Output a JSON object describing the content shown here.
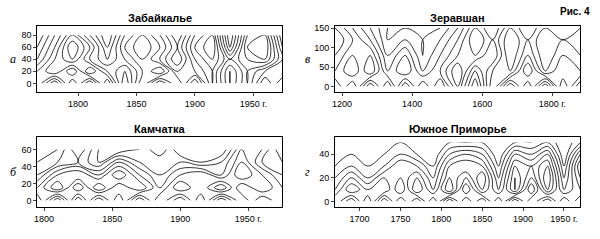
{
  "figure_label": "Рис. 4",
  "chart_data": [
    {
      "type": "contour",
      "title": "Забайкалье",
      "panel": "а",
      "grid": false,
      "x": [
        1765,
        1780,
        1795,
        1810,
        1825,
        1840,
        1855,
        1870,
        1885,
        1900,
        1915,
        1930,
        1945,
        1960,
        1975
      ],
      "y": [
        0,
        20,
        40,
        60,
        80
      ],
      "z": [
        [
          0.6,
          0.2,
          0.7,
          0.3,
          0.8,
          0.2,
          0.7,
          0.3,
          0.6,
          0.2,
          0.7,
          0.3,
          0.6,
          0.2,
          0.5
        ],
        [
          0.5,
          0.7,
          0.4,
          0.8,
          0.5,
          0.3,
          0.6,
          0.8,
          0.4,
          0.5,
          0.7,
          0.3,
          0.6,
          0.4,
          0.3
        ],
        [
          0.3,
          0.6,
          0.8,
          0.5,
          0.3,
          0.5,
          0.7,
          0.5,
          0.2,
          0.6,
          0.8,
          0.5,
          0.7,
          0.8,
          0.4
        ],
        [
          0.2,
          0.5,
          0.9,
          0.6,
          0.2,
          0.6,
          0.8,
          0.6,
          0.3,
          0.7,
          0.9,
          0.2,
          0.8,
          0.9,
          0.3
        ],
        [
          0.1,
          0.4,
          0.7,
          0.4,
          0.1,
          0.5,
          0.7,
          0.5,
          0.2,
          0.6,
          0.8,
          0.1,
          0.7,
          0.8,
          0.2
        ]
      ],
      "levels": [
        0.2,
        0.3,
        0.4,
        0.5,
        0.6,
        0.7,
        0.8
      ],
      "xlim": [
        1765,
        1975
      ],
      "ylim": [
        -15,
        95
      ],
      "xticks": [
        1800,
        1850,
        1900,
        {
          "value": 1950,
          "label": "1950 г."
        }
      ],
      "yticks": [
        0,
        20,
        40,
        60,
        80
      ]
    },
    {
      "type": "contour",
      "title": "Камчатка",
      "panel": "б",
      "grid": false,
      "x": [
        1795,
        1810,
        1825,
        1840,
        1855,
        1870,
        1885,
        1900,
        1915,
        1930,
        1945,
        1960,
        1975
      ],
      "y": [
        0,
        15,
        30,
        45,
        60
      ],
      "z": [
        [
          0.7,
          0.2,
          0.8,
          0.3,
          0.7,
          0.2,
          0.6,
          0.3,
          0.7,
          0.2,
          0.6,
          0.3,
          0.5
        ],
        [
          0.5,
          0.8,
          0.4,
          0.8,
          0.5,
          0.7,
          0.4,
          0.7,
          0.5,
          0.8,
          0.4,
          0.6,
          0.4
        ],
        [
          0.3,
          0.6,
          0.7,
          0.5,
          0.8,
          0.5,
          0.3,
          0.5,
          0.6,
          0.4,
          0.7,
          0.5,
          0.3
        ],
        [
          0.2,
          0.3,
          0.4,
          0.2,
          0.5,
          0.3,
          0.2,
          0.3,
          0.2,
          0.3,
          0.6,
          0.3,
          0.2
        ],
        [
          0.1,
          0.2,
          0.5,
          0.2,
          0.1,
          0.2,
          0.4,
          0.1,
          0.2,
          0.1,
          0.5,
          0.4,
          0.1
        ]
      ],
      "levels": [
        0.2,
        0.3,
        0.4,
        0.5,
        0.6,
        0.7,
        0.8
      ],
      "xlim": [
        1795,
        1975
      ],
      "ylim": [
        -8,
        75
      ],
      "xticks": [
        1800,
        1850,
        1900,
        {
          "value": 1950,
          "label": "1950 г."
        }
      ],
      "yticks": [
        0,
        20,
        40,
        60
      ]
    },
    {
      "type": "contour",
      "title": "Зеравшан",
      "panel": "в",
      "grid": false,
      "x": [
        1180,
        1230,
        1280,
        1330,
        1380,
        1430,
        1480,
        1530,
        1580,
        1630,
        1680,
        1730,
        1780,
        1830,
        1880
      ],
      "y": [
        0,
        40,
        80,
        120,
        150
      ],
      "z": [
        [
          0.5,
          0.8,
          0.3,
          0.7,
          0.2,
          0.6,
          0.3,
          0.7,
          0.2,
          0.8,
          0.3,
          0.7,
          0.2,
          0.8,
          0.4
        ],
        [
          0.7,
          0.5,
          0.8,
          0.4,
          0.6,
          0.3,
          0.5,
          0.8,
          0.4,
          0.7,
          0.8,
          0.4,
          0.8,
          0.6,
          0.7
        ],
        [
          0.8,
          0.6,
          0.7,
          0.3,
          0.5,
          0.2,
          0.4,
          0.6,
          0.7,
          0.5,
          0.9,
          0.6,
          0.9,
          0.7,
          0.8
        ],
        [
          0.9,
          0.7,
          0.5,
          0.2,
          0.3,
          0.2,
          0.3,
          0.5,
          0.8,
          0.6,
          0.9,
          0.7,
          0.9,
          0.8,
          0.9
        ],
        [
          0.8,
          0.6,
          0.4,
          0.2,
          0.2,
          0.1,
          0.2,
          0.4,
          0.7,
          0.5,
          0.8,
          0.6,
          0.8,
          0.7,
          0.8
        ]
      ],
      "levels": [
        0.2,
        0.3,
        0.4,
        0.5,
        0.6,
        0.7,
        0.8
      ],
      "xlim": [
        1180,
        1880
      ],
      "ylim": [
        -15,
        155
      ],
      "xticks": [
        1200,
        1400,
        1600,
        {
          "value": 1800,
          "label": "1800 г."
        }
      ],
      "yticks": [
        0,
        50,
        100,
        150
      ]
    },
    {
      "type": "contour",
      "title": "Южное Приморье",
      "panel": "г",
      "grid": false,
      "x": [
        1670,
        1690,
        1710,
        1730,
        1750,
        1770,
        1790,
        1810,
        1830,
        1850,
        1870,
        1890,
        1910,
        1930,
        1950,
        1970
      ],
      "y": [
        0,
        10,
        20,
        30,
        40,
        50
      ],
      "z": [
        [
          0.6,
          0.3,
          0.7,
          0.2,
          0.6,
          0.3,
          0.7,
          0.2,
          0.6,
          0.3,
          0.7,
          0.2,
          0.6,
          0.3,
          0.7,
          0.4
        ],
        [
          0.4,
          0.7,
          0.5,
          0.6,
          0.3,
          0.7,
          0.4,
          0.8,
          0.3,
          0.7,
          0.4,
          0.8,
          0.3,
          0.8,
          0.4,
          0.6
        ],
        [
          0.3,
          0.5,
          0.3,
          0.5,
          0.4,
          0.6,
          0.3,
          0.7,
          0.5,
          0.8,
          0.3,
          0.8,
          0.5,
          0.9,
          0.3,
          0.7
        ],
        [
          0.2,
          0.3,
          0.2,
          0.3,
          0.5,
          0.4,
          0.2,
          0.6,
          0.7,
          0.6,
          0.2,
          0.7,
          0.6,
          0.8,
          0.2,
          0.8
        ],
        [
          0.1,
          0.2,
          0.1,
          0.2,
          0.3,
          0.2,
          0.1,
          0.4,
          0.5,
          0.4,
          0.1,
          0.5,
          0.4,
          0.6,
          0.1,
          0.6
        ],
        [
          0.1,
          0.1,
          0.1,
          0.1,
          0.2,
          0.1,
          0.1,
          0.2,
          0.2,
          0.2,
          0.1,
          0.2,
          0.2,
          0.3,
          0.1,
          0.3
        ]
      ],
      "levels": [
        0.2,
        0.3,
        0.4,
        0.5,
        0.6,
        0.7,
        0.8
      ],
      "xlim": [
        1670,
        1970
      ],
      "ylim": [
        -5,
        55
      ],
      "xticks": [
        1700,
        1750,
        1800,
        1850,
        1900,
        {
          "value": 1950,
          "label": "1950 г."
        }
      ],
      "yticks": [
        0,
        20,
        40
      ]
    }
  ]
}
